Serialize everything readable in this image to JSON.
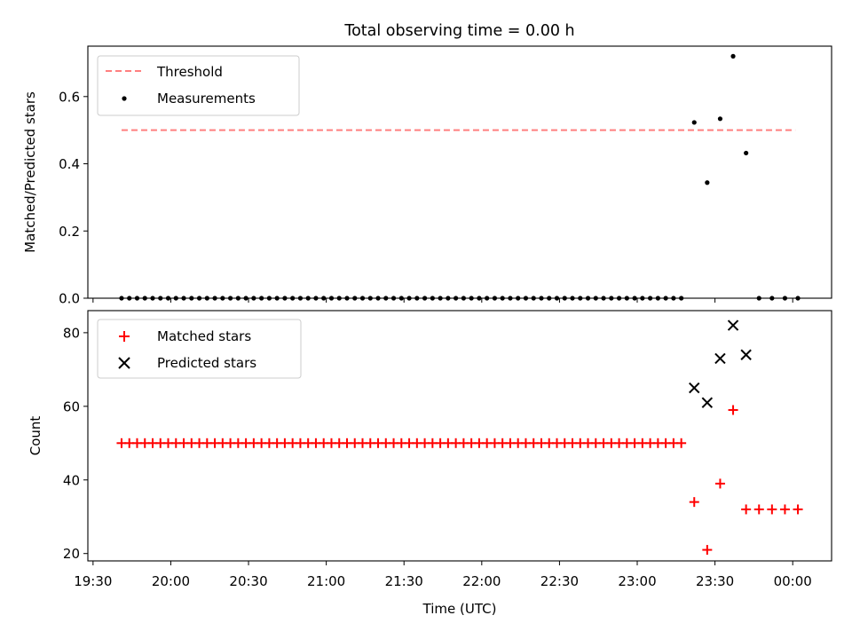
{
  "chart_data": [
    {
      "type": "scatter",
      "title": "Total observing time = 0.00 h",
      "xlabel": "",
      "ylabel": "Matched/Predicted stars",
      "xlim": [
        "19:28",
        "00:15"
      ],
      "ylim": [
        0,
        0.75
      ],
      "yticks": [
        "0.0",
        "0.2",
        "0.4",
        "0.6"
      ],
      "ytick_values": [
        0,
        0.2,
        0.4,
        0.6
      ],
      "legend_position": "upper-left",
      "threshold": {
        "name": "Threshold",
        "value": 0.5,
        "x_start": "19:41",
        "x_end": "00:01",
        "color": "#ff7f7f"
      },
      "series": [
        {
          "name": "Measurements",
          "color": "#000000",
          "x": [
            "19:41",
            "19:44",
            "19:47",
            "19:50",
            "19:53",
            "19:56",
            "19:59",
            "20:02",
            "20:05",
            "20:08",
            "20:11",
            "20:14",
            "20:17",
            "20:20",
            "20:23",
            "20:26",
            "20:29",
            "20:32",
            "20:35",
            "20:38",
            "20:41",
            "20:44",
            "20:47",
            "20:50",
            "20:53",
            "20:56",
            "20:59",
            "21:02",
            "21:05",
            "21:08",
            "21:11",
            "21:14",
            "21:17",
            "21:20",
            "21:23",
            "21:26",
            "21:29",
            "21:32",
            "21:35",
            "21:38",
            "21:41",
            "21:44",
            "21:47",
            "21:50",
            "21:53",
            "21:56",
            "21:59",
            "22:02",
            "22:05",
            "22:08",
            "22:11",
            "22:14",
            "22:17",
            "22:20",
            "22:23",
            "22:26",
            "22:29",
            "22:32",
            "22:35",
            "22:38",
            "22:41",
            "22:44",
            "22:47",
            "22:50",
            "22:53",
            "22:56",
            "22:59",
            "23:02",
            "23:05",
            "23:08",
            "23:11",
            "23:14",
            "23:17",
            "23:22",
            "23:27",
            "23:32",
            "23:37",
            "23:42",
            "23:47",
            "23:52",
            "23:57",
            "00:02"
          ],
          "y": [
            0,
            0,
            0,
            0,
            0,
            0,
            0,
            0,
            0,
            0,
            0,
            0,
            0,
            0,
            0,
            0,
            0,
            0,
            0,
            0,
            0,
            0,
            0,
            0,
            0,
            0,
            0,
            0,
            0,
            0,
            0,
            0,
            0,
            0,
            0,
            0,
            0,
            0,
            0,
            0,
            0,
            0,
            0,
            0,
            0,
            0,
            0,
            0,
            0,
            0,
            0,
            0,
            0,
            0,
            0,
            0,
            0,
            0,
            0,
            0,
            0,
            0,
            0,
            0,
            0,
            0,
            0,
            0,
            0,
            0,
            0,
            0,
            0,
            0.523,
            0.344,
            0.534,
            0.72,
            0.432,
            0,
            0,
            0,
            0
          ]
        }
      ]
    },
    {
      "type": "scatter",
      "title": "",
      "xlabel": "Time (UTC)",
      "ylabel": "Count",
      "xlim": [
        "19:28",
        "00:15"
      ],
      "ylim": [
        18,
        86
      ],
      "xticks": [
        "19:30",
        "20:00",
        "20:30",
        "21:00",
        "21:30",
        "22:00",
        "22:30",
        "23:00",
        "23:30",
        "00:00"
      ],
      "yticks": [
        "20",
        "40",
        "60",
        "80"
      ],
      "ytick_values": [
        20,
        40,
        60,
        80
      ],
      "legend_position": "upper-left",
      "series": [
        {
          "name": "Matched stars",
          "marker": "plus",
          "color": "#ff0000",
          "x": [
            "19:41",
            "19:44",
            "19:47",
            "19:50",
            "19:53",
            "19:56",
            "19:59",
            "20:02",
            "20:05",
            "20:08",
            "20:11",
            "20:14",
            "20:17",
            "20:20",
            "20:23",
            "20:26",
            "20:29",
            "20:32",
            "20:35",
            "20:38",
            "20:41",
            "20:44",
            "20:47",
            "20:50",
            "20:53",
            "20:56",
            "20:59",
            "21:02",
            "21:05",
            "21:08",
            "21:11",
            "21:14",
            "21:17",
            "21:20",
            "21:23",
            "21:26",
            "21:29",
            "21:32",
            "21:35",
            "21:38",
            "21:41",
            "21:44",
            "21:47",
            "21:50",
            "21:53",
            "21:56",
            "21:59",
            "22:02",
            "22:05",
            "22:08",
            "22:11",
            "22:14",
            "22:17",
            "22:20",
            "22:23",
            "22:26",
            "22:29",
            "22:32",
            "22:35",
            "22:38",
            "22:41",
            "22:44",
            "22:47",
            "22:50",
            "22:53",
            "22:56",
            "22:59",
            "23:02",
            "23:05",
            "23:08",
            "23:11",
            "23:14",
            "23:17",
            "23:22",
            "23:27",
            "23:32",
            "23:37",
            "23:42",
            "23:47",
            "23:52",
            "23:57",
            "00:02"
          ],
          "y": [
            50,
            50,
            50,
            50,
            50,
            50,
            50,
            50,
            50,
            50,
            50,
            50,
            50,
            50,
            50,
            50,
            50,
            50,
            50,
            50,
            50,
            50,
            50,
            50,
            50,
            50,
            50,
            50,
            50,
            50,
            50,
            50,
            50,
            50,
            50,
            50,
            50,
            50,
            50,
            50,
            50,
            50,
            50,
            50,
            50,
            50,
            50,
            50,
            50,
            50,
            50,
            50,
            50,
            50,
            50,
            50,
            50,
            50,
            50,
            50,
            50,
            50,
            50,
            50,
            50,
            50,
            50,
            50,
            50,
            50,
            50,
            50,
            50,
            34,
            21,
            39,
            59,
            32,
            32,
            32,
            32,
            32
          ]
        },
        {
          "name": "Predicted stars",
          "marker": "x",
          "color": "#000000",
          "x": [
            "23:22",
            "23:27",
            "23:32",
            "23:37",
            "23:42"
          ],
          "y": [
            65,
            61,
            73,
            82,
            74
          ]
        }
      ]
    }
  ]
}
